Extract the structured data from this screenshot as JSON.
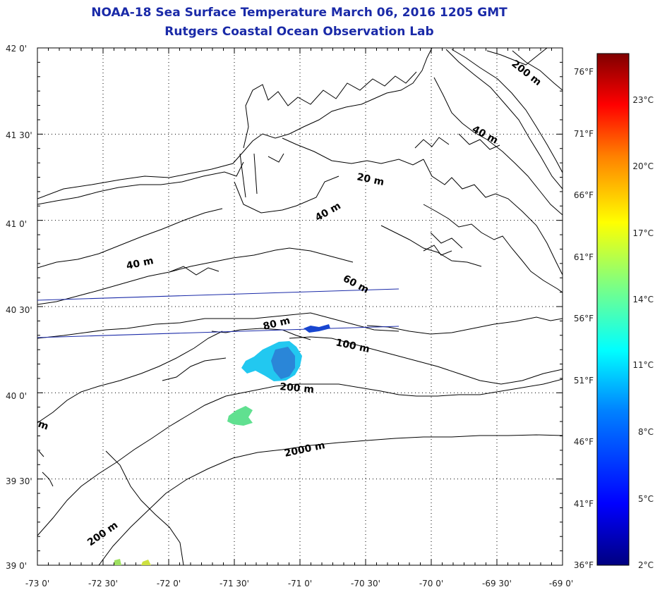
{
  "title": "NOAA-18 Sea Surface Temperature March 06, 2016 1205 GMT",
  "subtitle": "Rutgers Coastal Ocean Observation Lab",
  "lat_labels": [
    "42 0'",
    "41 30'",
    "41 0'",
    "40 30'",
    "40 0'",
    "39 30'",
    "39 0'"
  ],
  "lon_labels": [
    "-73 0'",
    "-72 30'",
    "-72 0'",
    "-71 30'",
    "-71 0'",
    "-70 30'",
    "-70 0'",
    "-69 30'",
    "-69 0'"
  ],
  "depth_labels": {
    "d200_ne": "200 m",
    "d40_ne": "40 m",
    "d20": "20 m",
    "d40_c": "40 m",
    "d40_w": "40 m",
    "d60": "60 m",
    "d80": "80 m",
    "d100": "100 m",
    "d200_c": "200 m",
    "d2000": "2000 m",
    "d200_sw": "200 m",
    "dm_left": "m"
  },
  "colorbar": {
    "fahrenheit": [
      "76°F",
      "71°F",
      "66°F",
      "61°F",
      "56°F",
      "51°F",
      "46°F",
      "41°F",
      "36°F"
    ],
    "celsius": [
      "23°C",
      "20°C",
      "17°C",
      "14°C",
      "11°C",
      "8°C",
      "5°C",
      "2°C"
    ],
    "gradient": [
      "#000080",
      "#0000ff",
      "#0080ff",
      "#00ffff",
      "#80ff80",
      "#ffff00",
      "#ff8000",
      "#ff0000",
      "#800000"
    ]
  },
  "colors": {
    "title": "#1a2aa8",
    "coast": "#000000",
    "track_lines": "#1a2aa8"
  }
}
